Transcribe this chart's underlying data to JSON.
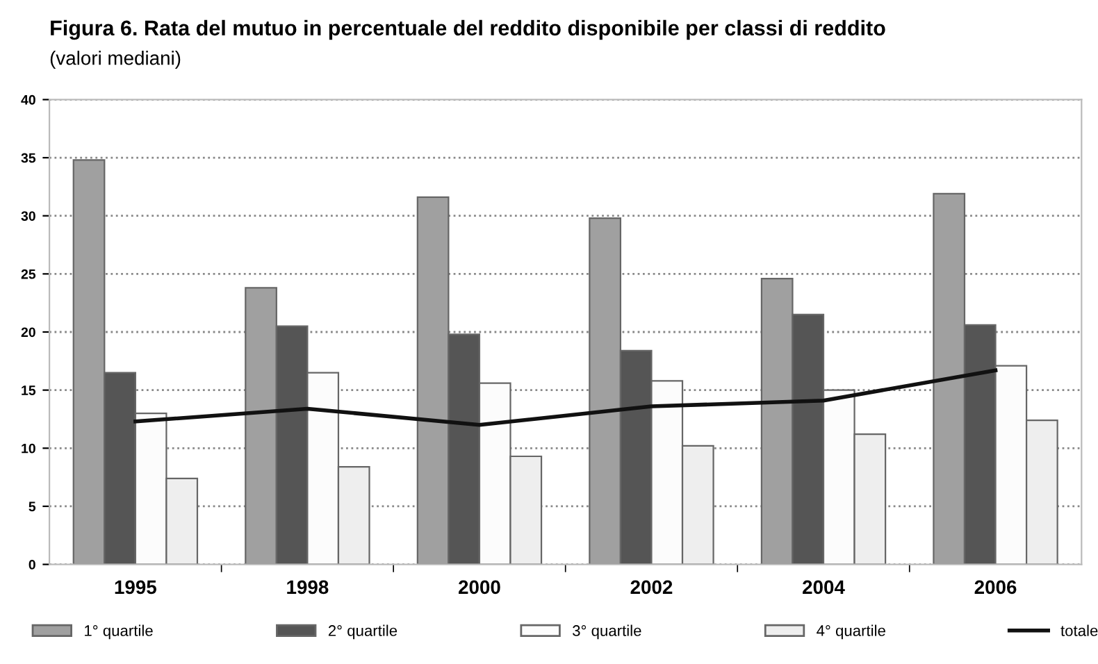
{
  "chart_data": {
    "type": "bar",
    "title": "Figura 6. Rata del mutuo in percentuale del reddito disponibile per classi di reddito",
    "subtitle": "(valori mediani)",
    "categories": [
      "1995",
      "1998",
      "2000",
      "2002",
      "2004",
      "2006"
    ],
    "series": [
      {
        "name": "1° quartile",
        "color": "#a0a0a0",
        "values": [
          34.8,
          23.8,
          31.6,
          29.8,
          24.6,
          31.9
        ]
      },
      {
        "name": "2° quartile",
        "color": "#555555",
        "values": [
          16.5,
          20.5,
          19.8,
          18.4,
          21.5,
          20.6
        ]
      },
      {
        "name": "3° quartile",
        "color": "#fcfcfc",
        "values": [
          13.0,
          16.5,
          15.6,
          15.8,
          15.0,
          17.1
        ]
      },
      {
        "name": "4° quartile",
        "color": "#eeeeee",
        "values": [
          7.4,
          8.4,
          9.3,
          10.2,
          11.2,
          12.4
        ]
      },
      {
        "name": "totale",
        "type": "line",
        "color": "#111111",
        "values": [
          12.3,
          13.4,
          12.0,
          13.6,
          14.1,
          16.7
        ]
      }
    ],
    "ylim": [
      0,
      40
    ],
    "yticks": [
      0,
      5,
      10,
      15,
      20,
      25,
      30,
      35,
      40
    ],
    "grid": "y",
    "legend": "bottom",
    "line_style": "solid",
    "marker": "none"
  }
}
